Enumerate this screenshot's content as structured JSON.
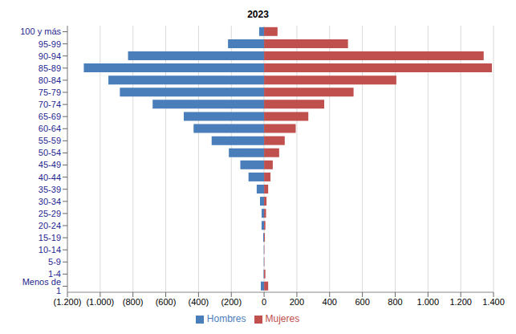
{
  "chart_data": {
    "type": "bar",
    "title": "2023",
    "orientation": "horizontal",
    "grid": true,
    "legend": "bottom",
    "categories": [
      "100 y más",
      "95-99",
      "90-94",
      "85-89",
      "80-84",
      "75-79",
      "70-74",
      "65-69",
      "60-64",
      "55-59",
      "50-54",
      "45-49",
      "40-44",
      "35-39",
      "30-34",
      "25-29",
      "20-24",
      "15-19",
      "10-14",
      "5-9",
      "1-4",
      "Menos de 1"
    ],
    "series": [
      {
        "name": "Hombres",
        "color": "#4a7ebb",
        "values": [
          -30,
          -220,
          -830,
          -1100,
          -950,
          -880,
          -680,
          -490,
          -430,
          -320,
          -215,
          -145,
          -95,
          -45,
          -25,
          -15,
          -15,
          -5,
          -2,
          -2,
          -3,
          -20
        ]
      },
      {
        "name": "Mujeres",
        "color": "#c0504d",
        "values": [
          82,
          512,
          1340,
          1390,
          807,
          546,
          367,
          270,
          193,
          126,
          92,
          53,
          39,
          25,
          15,
          12,
          8,
          5,
          2,
          2,
          8,
          25
        ]
      }
    ],
    "xlim": [
      -1200,
      1400
    ],
    "xticks": [
      {
        "value": -1200,
        "label": "(1.200)"
      },
      {
        "value": -1000,
        "label": "(1.000)"
      },
      {
        "value": -800,
        "label": "(800)"
      },
      {
        "value": -600,
        "label": "(600)"
      },
      {
        "value": -400,
        "label": "(400)"
      },
      {
        "value": -200,
        "label": "(200)"
      },
      0,
      200,
      400,
      600,
      800,
      {
        "value": 1000,
        "label": "1.000"
      },
      {
        "value": 1200,
        "label": "1.200"
      },
      {
        "value": 1400,
        "label": "1.400"
      }
    ]
  }
}
